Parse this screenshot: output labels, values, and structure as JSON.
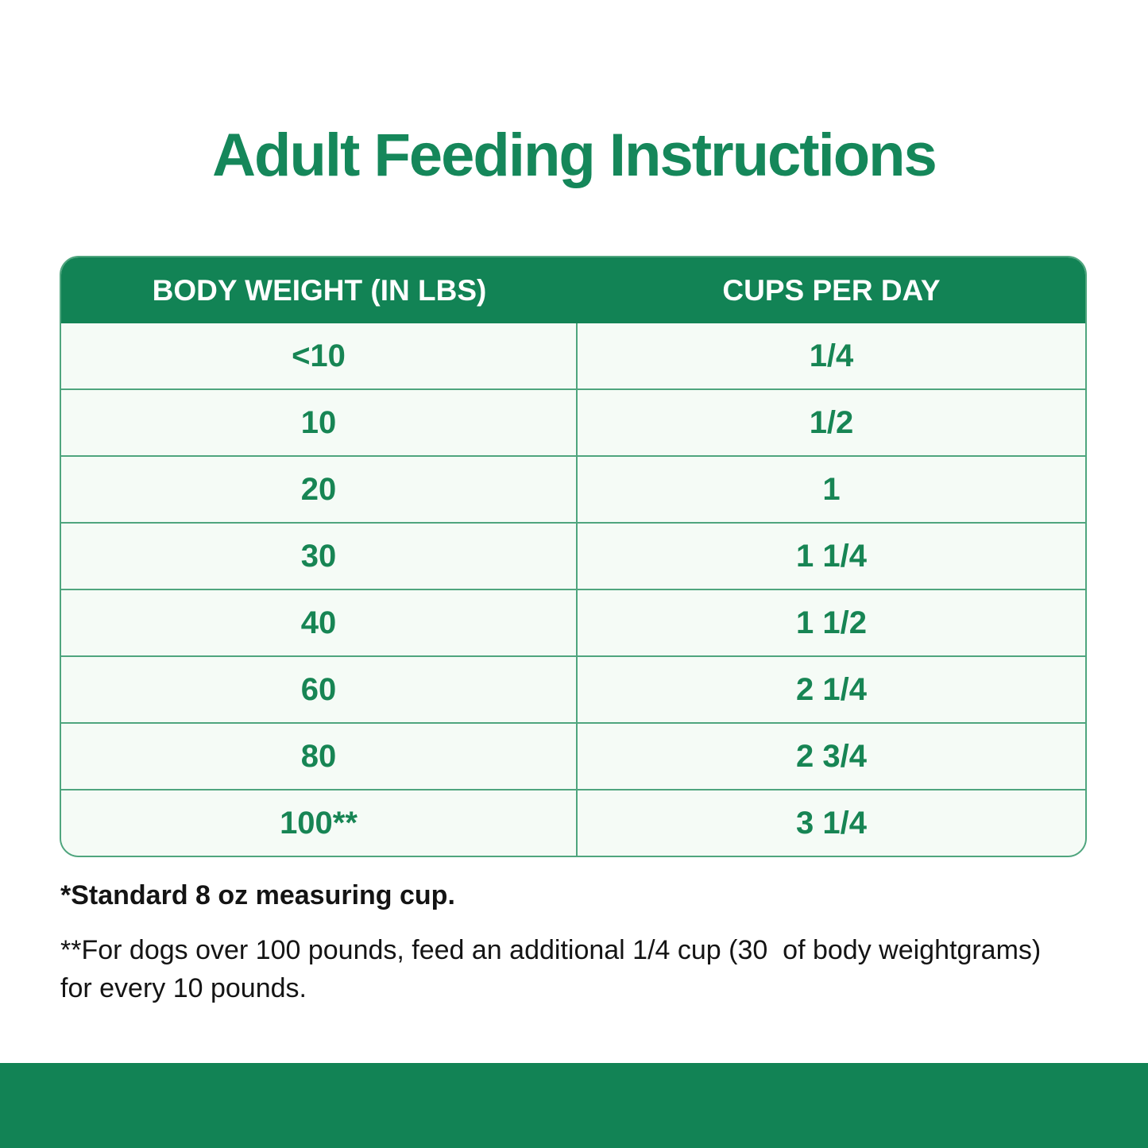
{
  "page": {
    "title": "Adult Feeding Instructions",
    "colors": {
      "brand_green": "#128355",
      "title_green": "#15875A",
      "cell_text_green": "#178554",
      "row_background": "#F5FBF6",
      "divider_green": "#4FA57E",
      "header_text": "#FFFFFF",
      "note_text": "#141414"
    }
  },
  "table": {
    "columns": [
      "BODY WEIGHT (IN LBS)",
      "CUPS PER DAY"
    ],
    "rows": [
      {
        "weight": "<10",
        "cups": "1/4"
      },
      {
        "weight": "10",
        "cups": "1/2"
      },
      {
        "weight": "20",
        "cups": "1"
      },
      {
        "weight": "30",
        "cups": "1 1/4"
      },
      {
        "weight": "40",
        "cups": "1 1/2"
      },
      {
        "weight": "60",
        "cups": "2 1/4"
      },
      {
        "weight": "80",
        "cups": "2 3/4"
      },
      {
        "weight": "100**",
        "cups": "3 1/4"
      }
    ]
  },
  "footnotes": {
    "note1": "*Standard 8 oz measuring cup.",
    "note2": "**For dogs over 100 pounds, feed an additional 1/4 cup (30  of body weightgrams)\nfor every 10 pounds."
  }
}
